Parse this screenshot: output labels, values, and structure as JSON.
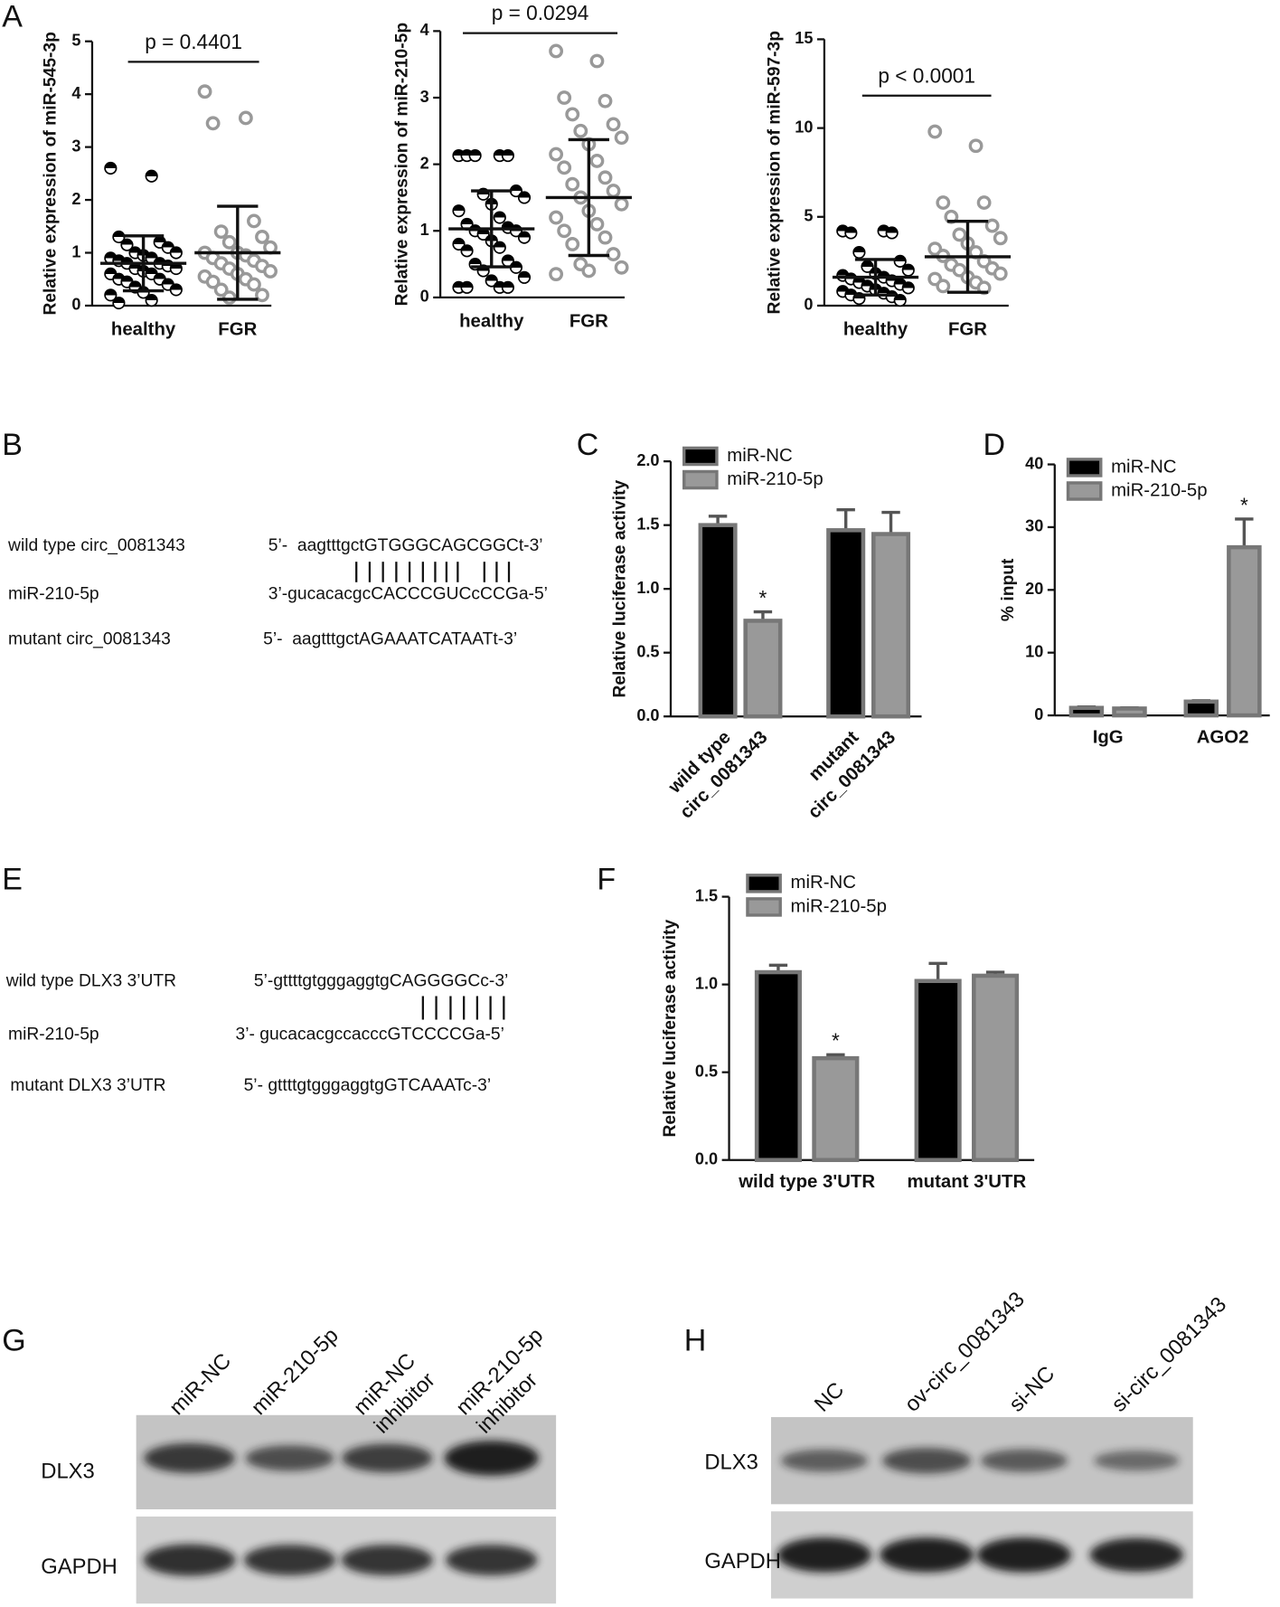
{
  "panels": [
    "A",
    "B",
    "C",
    "D",
    "E",
    "F",
    "G",
    "H"
  ],
  "chart_data": [
    {
      "type": "scatter",
      "ylabel": "Relative expression of miR-545-3p",
      "categories": [
        "healthy",
        "FGR"
      ],
      "ylim": [
        0,
        5
      ],
      "yticks": [
        0,
        1,
        2,
        3,
        4,
        5
      ],
      "annotation": "p = 0.4401",
      "series": [
        {
          "color": "#000000",
          "mean": 0.8,
          "sd": 0.52,
          "values": [
            2.6,
            2.45,
            1.3,
            1.2,
            1.15,
            1.1,
            1.0,
            1.0,
            0.95,
            0.9,
            0.9,
            0.85,
            0.8,
            0.8,
            0.75,
            0.7,
            0.7,
            0.65,
            0.6,
            0.6,
            0.5,
            0.5,
            0.45,
            0.4,
            0.35,
            0.3,
            0.25,
            0.2,
            0.1,
            0.05
          ]
        },
        {
          "color": "#999999",
          "mean": 1.0,
          "sd": 0.88,
          "values": [
            4.05,
            3.55,
            3.45,
            1.6,
            1.4,
            1.3,
            1.2,
            1.1,
            1.0,
            1.0,
            0.95,
            0.9,
            0.85,
            0.8,
            0.75,
            0.7,
            0.65,
            0.6,
            0.55,
            0.5,
            0.45,
            0.4,
            0.3,
            0.2,
            0.15
          ]
        }
      ]
    },
    {
      "type": "scatter",
      "ylabel": "Relative expression of miR-210-5p",
      "categories": [
        "healthy",
        "FGR"
      ],
      "ylim": [
        0,
        4
      ],
      "yticks": [
        0,
        1,
        2,
        3,
        4
      ],
      "annotation": "p = 0.0294",
      "series": [
        {
          "color": "#000000",
          "mean": 1.03,
          "sd": 0.57,
          "values": [
            2.13,
            2.13,
            2.13,
            2.13,
            2.13,
            1.6,
            1.55,
            1.5,
            1.4,
            1.3,
            1.2,
            1.1,
            1.05,
            1.0,
            1.0,
            0.95,
            0.9,
            0.85,
            0.8,
            0.75,
            0.7,
            0.55,
            0.5,
            0.45,
            0.4,
            0.3,
            0.25,
            0.15,
            0.15,
            0.15,
            0.15
          ]
        },
        {
          "color": "#999999",
          "mean": 1.5,
          "sd": 0.87,
          "values": [
            3.7,
            3.55,
            3.0,
            2.95,
            2.75,
            2.6,
            2.5,
            2.4,
            2.3,
            2.15,
            2.05,
            1.95,
            1.8,
            1.7,
            1.6,
            1.5,
            1.4,
            1.3,
            1.2,
            1.1,
            1.0,
            0.9,
            0.8,
            0.65,
            0.5,
            0.45,
            0.4,
            0.35
          ]
        }
      ]
    },
    {
      "type": "scatter",
      "ylabel": "Relative expression of miR-597-3p",
      "categories": [
        "healthy",
        "FGR"
      ],
      "ylim": [
        0,
        15
      ],
      "yticks": [
        0,
        5,
        10,
        15
      ],
      "annotation": "p < 0.0001",
      "series": [
        {
          "color": "#000000",
          "mean": 1.6,
          "sd": 1.0,
          "values": [
            4.2,
            4.2,
            4.1,
            4.1,
            3.0,
            2.5,
            2.2,
            2.0,
            1.8,
            1.7,
            1.6,
            1.5,
            1.4,
            1.3,
            1.2,
            1.1,
            1.0,
            0.9,
            0.8,
            0.7,
            0.6,
            0.5,
            0.4,
            0.3
          ]
        },
        {
          "color": "#999999",
          "mean": 2.75,
          "sd": 2.0,
          "values": [
            9.8,
            9.0,
            5.8,
            5.8,
            5.0,
            4.5,
            4.0,
            3.8,
            3.5,
            3.2,
            3.0,
            2.8,
            2.5,
            2.3,
            2.1,
            2.0,
            1.8,
            1.6,
            1.5,
            1.3,
            1.1,
            1.0
          ]
        }
      ]
    },
    {
      "type": "bar",
      "ylabel": "Relative luciferase activity",
      "categories": [
        [
          "wild type",
          "circ_0081343"
        ],
        [
          "mutant",
          "circ_0081343"
        ]
      ],
      "ylim": [
        0,
        2
      ],
      "yticks": [
        {
          "value": 0,
          "label": "0.0"
        },
        {
          "value": 0.5,
          "label": "0.5"
        },
        {
          "value": 1,
          "label": "1.0"
        },
        {
          "value": 1.5,
          "label": "1.5"
        },
        {
          "value": 2,
          "label": "2.0"
        }
      ],
      "annotation": "*",
      "legend": "upper left",
      "series": [
        {
          "name": "miR-NC",
          "color": "#000000",
          "values": [
            1.5,
            1.46
          ],
          "errors": [
            0.07,
            0.16
          ]
        },
        {
          "name": "miR-210-5p",
          "color": "#999999",
          "values": [
            0.75,
            1.43
          ],
          "errors": [
            0.07,
            0.17
          ]
        }
      ]
    },
    {
      "type": "bar",
      "ylabel": "% input",
      "categories": [
        "IgG",
        "AGO2"
      ],
      "ylim": [
        0,
        40
      ],
      "yticks": [
        0,
        10,
        20,
        30,
        40
      ],
      "annotation": "*",
      "legend": "upper left",
      "series": [
        {
          "name": "miR-NC",
          "color": "#000000",
          "values": [
            1.2,
            2.2
          ],
          "errors": [
            0.15,
            0.15
          ]
        },
        {
          "name": "miR-210-5p",
          "color": "#999999",
          "values": [
            1.1,
            26.8
          ],
          "errors": [
            0.1,
            4.5
          ]
        }
      ]
    },
    {
      "type": "bar",
      "ylabel": "Relative luciferase activity",
      "categories": [
        "wild type 3'UTR",
        "mutant 3'UTR"
      ],
      "ylim": [
        0,
        1.5
      ],
      "yticks": [
        {
          "value": 0,
          "label": "0.0"
        },
        {
          "value": 0.5,
          "label": "0.5"
        },
        {
          "value": 1,
          "label": "1.0"
        },
        {
          "value": 1.5,
          "label": "1.5"
        }
      ],
      "annotation": "*",
      "legend": "upper left",
      "series": [
        {
          "name": "miR-NC",
          "color": "#000000",
          "values": [
            1.07,
            1.02
          ],
          "errors": [
            0.04,
            0.1
          ]
        },
        {
          "name": "miR-210-5p",
          "color": "#999999",
          "values": [
            0.58,
            1.05
          ],
          "errors": [
            0.02,
            0.02
          ]
        }
      ]
    }
  ],
  "alignment_b": {
    "rows": [
      [
        "wild type circ_0081343",
        "5’-  aagtttgctGTGGGCAGCGGCt-3’"
      ],
      [
        "miR-210-5p",
        "3’-gucacacgcCACCCGUCcCCGa-5’"
      ],
      [
        "mutant circ_0081343",
        "5’-  aagtttgctAGAAATCATAATt-3’"
      ]
    ]
  },
  "alignment_e": {
    "rows": [
      [
        "wild type DLX3 3’UTR",
        "5’-gttttgtgggaggtgCAGGGGCc-3’"
      ],
      [
        "miR-210-5p",
        "3’- gucacacgccacccGTCCCCGa-5’"
      ],
      [
        "mutant DLX3 3’UTR",
        "5’- gttttgtgggaggtgGTCAAATc-3’"
      ]
    ]
  },
  "blot_g": {
    "lanes": [
      [
        "miR-NC"
      ],
      [
        "miR-210-5p"
      ],
      [
        "miR-NC",
        "inhibitor"
      ],
      [
        "miR-210-5p",
        "inhibitor"
      ]
    ],
    "proteins": [
      "DLX3",
      "GAPDH"
    ]
  },
  "blot_h": {
    "lanes": [
      [
        "NC"
      ],
      [
        "ov-circ_0081343"
      ],
      [
        "si-NC"
      ],
      [
        "si-circ_0081343"
      ]
    ],
    "proteins": [
      "DLX3",
      "GAPDH"
    ]
  }
}
